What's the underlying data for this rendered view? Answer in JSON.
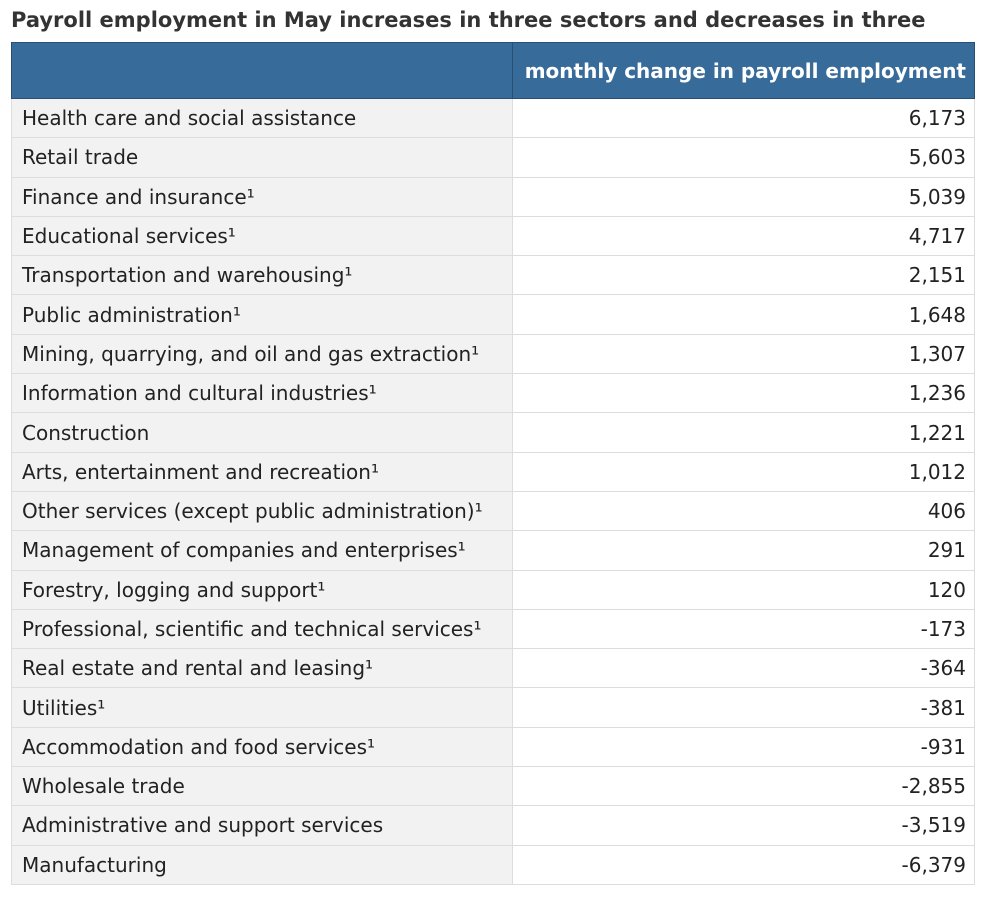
{
  "colors": {
    "header_background": "#376b9a",
    "header_text": "#ffffff",
    "label_cell_background": "#f2f2f2",
    "value_cell_background": "#ffffff",
    "border": "#dddddd"
  },
  "chart_data": {
    "type": "table",
    "title": "Payroll employment in May increases in three sectors and decreases in three",
    "columns": [
      "",
      "monthly change in payroll employment"
    ],
    "rows": [
      {
        "label": "Health care and social assistance",
        "display": "6,173",
        "value": 6173
      },
      {
        "label": "Retail trade",
        "display": "5,603",
        "value": 5603
      },
      {
        "label": "Finance and insurance¹",
        "display": "5,039",
        "value": 5039
      },
      {
        "label": "Educational services¹",
        "display": "4,717",
        "value": 4717
      },
      {
        "label": "Transportation and warehousing¹",
        "display": "2,151",
        "value": 2151
      },
      {
        "label": "Public administration¹",
        "display": "1,648",
        "value": 1648
      },
      {
        "label": "Mining, quarrying, and oil and gas extraction¹",
        "display": "1,307",
        "value": 1307
      },
      {
        "label": "Information and cultural industries¹",
        "display": "1,236",
        "value": 1236
      },
      {
        "label": "Construction",
        "display": "1,221",
        "value": 1221
      },
      {
        "label": "Arts, entertainment and recreation¹",
        "display": "1,012",
        "value": 1012
      },
      {
        "label": "Other services (except public administration)¹",
        "display": "406",
        "value": 406
      },
      {
        "label": "Management of companies and enterprises¹",
        "display": "291",
        "value": 291
      },
      {
        "label": "Forestry, logging and support¹",
        "display": "120",
        "value": 120
      },
      {
        "label": "Professional, scientific and technical services¹",
        "display": "-173",
        "value": -173
      },
      {
        "label": "Real estate and rental and leasing¹",
        "display": "-364",
        "value": -364
      },
      {
        "label": "Utilities¹",
        "display": "-381",
        "value": -381
      },
      {
        "label": "Accommodation and food services¹",
        "display": "-931",
        "value": -931
      },
      {
        "label": "Wholesale trade",
        "display": "-2,855",
        "value": -2855
      },
      {
        "label": "Administrative and support services",
        "display": "-3,519",
        "value": -3519
      },
      {
        "label": "Manufacturing",
        "display": "-6,379",
        "value": -6379
      }
    ]
  }
}
